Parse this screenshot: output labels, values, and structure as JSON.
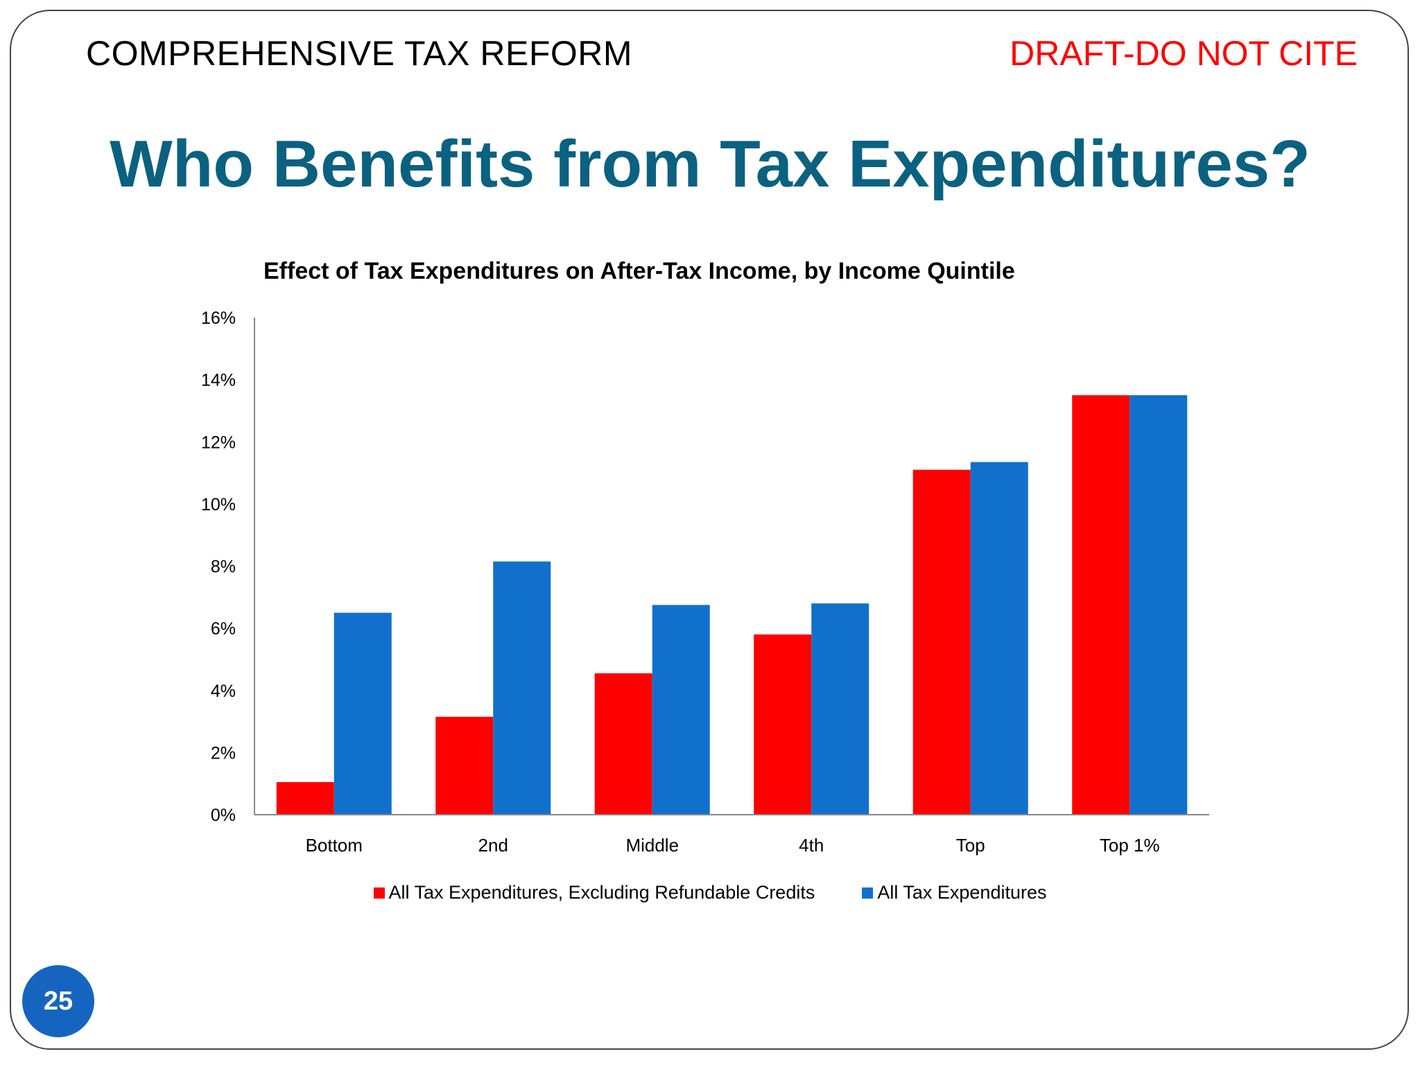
{
  "header": {
    "left": "COMPREHENSIVE TAX REFORM",
    "right": "DRAFT-DO NOT CITE"
  },
  "slide": {
    "title": "Who Benefits from Tax Expenditures?",
    "page_number": "25"
  },
  "colors": {
    "title": "#0b6180",
    "draft": "#ff0000",
    "series_red": "#ff0000",
    "series_blue": "#1170cc",
    "badge": "#1565c0"
  },
  "chart_data": {
    "type": "bar",
    "title": "Effect of Tax Expenditures on After-Tax Income, by Income Quintile",
    "xlabel": "",
    "ylabel": "",
    "categories": [
      "Bottom",
      "2nd",
      "Middle",
      "4th",
      "Top",
      "Top 1%"
    ],
    "ylim": [
      0,
      16
    ],
    "yticks": [
      "0%",
      "2%",
      "4%",
      "6%",
      "8%",
      "10%",
      "12%",
      "14%",
      "16%"
    ],
    "grid": false,
    "legend": "bottom",
    "series": [
      {
        "name": "All Tax Expenditures, Excluding Refundable Credits",
        "color": "#ff0000",
        "values": [
          1.05,
          3.15,
          4.55,
          5.8,
          11.1,
          13.5
        ]
      },
      {
        "name": "All Tax Expenditures",
        "color": "#1170cc",
        "values": [
          6.5,
          8.15,
          6.75,
          6.8,
          11.35,
          13.5
        ]
      }
    ]
  }
}
